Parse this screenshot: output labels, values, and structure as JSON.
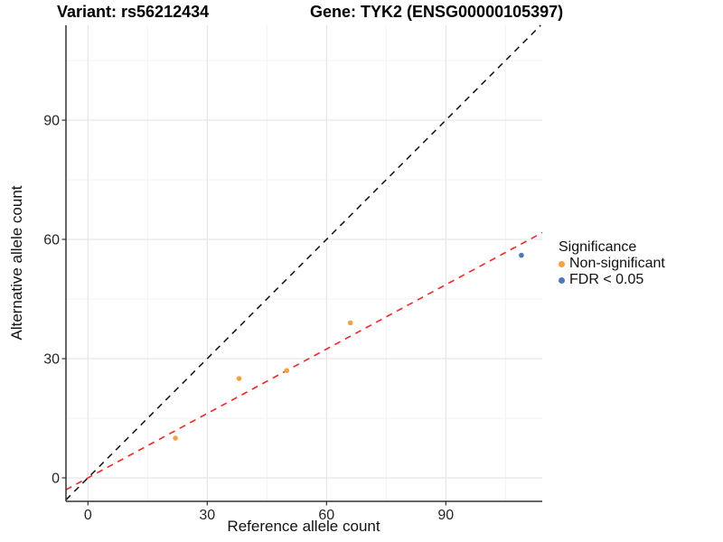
{
  "header": {
    "variant_title": "Variant: rs56212434",
    "gene_title": "Gene: TYK2 (ENSG00000105397)"
  },
  "chart_data": {
    "type": "scatter",
    "title": "Variant: rs56212434   Gene: TYK2 (ENSG00000105397)",
    "xlabel": "Reference allele count",
    "ylabel": "Alternative allele count",
    "xlim": [
      -5.5,
      114.2
    ],
    "ylim": [
      -5.9,
      113.9
    ],
    "x_ticks": [
      0,
      30,
      60,
      90
    ],
    "y_ticks": [
      0,
      30,
      60,
      90
    ],
    "minor_gridlines": [
      15,
      45,
      75,
      105
    ],
    "grid": "on",
    "series": [
      {
        "name": "Non-significant",
        "color": "#F8A13E",
        "points": [
          [
            22,
            10
          ],
          [
            38,
            25
          ],
          [
            50,
            27
          ],
          [
            66,
            39
          ]
        ]
      },
      {
        "name": "FDR < 0.05",
        "color": "#4D79B5",
        "points": [
          [
            109,
            56
          ]
        ]
      }
    ],
    "lines": [
      {
        "name": "identity-line",
        "color": "#1A1A1A",
        "style": "dashed",
        "slope": 1,
        "intercept": 0
      },
      {
        "name": "fit-line",
        "color": "#FF2222",
        "style": "dashed",
        "slope": 0.54,
        "intercept": 0
      }
    ],
    "legend": {
      "title": "Significance",
      "position": "right",
      "items": [
        {
          "label": "Non-significant",
          "color": "#F8A13E"
        },
        {
          "label": "FDR < 0.05",
          "color": "#4D79B5"
        }
      ]
    },
    "colors": {
      "major_grid": "#E6E6E6",
      "minor_grid": "#F2F2F2",
      "axis_line": "#333333",
      "tick_text": "#262626"
    }
  }
}
